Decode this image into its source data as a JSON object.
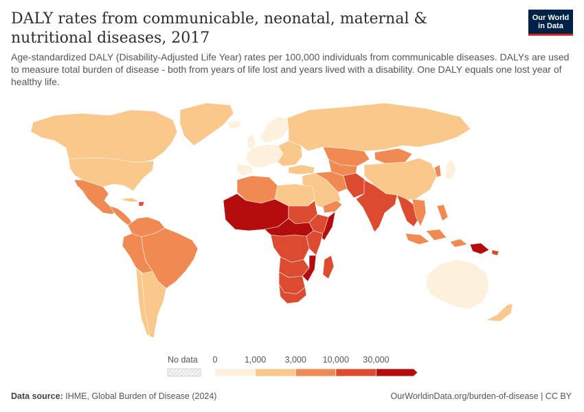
{
  "header": {
    "title": "DALY rates from communicable, neonatal, maternal & nutritional diseases, 2017",
    "subtitle": "Age-standardized DALY (Disability-Adjusted Life Year) rates per 100,000 individuals from communicable diseases. DALYs are used to measure total burden of disease - both from years of life lost and years lived with a disability. One DALY equals one lost year of healthy life."
  },
  "logo": {
    "line1": "Our World",
    "line2": "in Data",
    "bg": "#002147",
    "accent": "#ce261e"
  },
  "colors": {
    "c0": "#fdf0dc",
    "c1": "#f9c88a",
    "c2": "#f08a52",
    "c3": "#dc4a30",
    "c4": "#b50d0d",
    "ocean": "#ffffff",
    "border": "#ffffff"
  },
  "legend": {
    "no_data_label": "No data",
    "ticks": [
      "0",
      "1,000",
      "3,000",
      "10,000",
      "30,000"
    ],
    "bins": [
      {
        "from": 0,
        "to": 1000,
        "color": "#fdf0dc"
      },
      {
        "from": 1000,
        "to": 3000,
        "color": "#f9c88a"
      },
      {
        "from": 3000,
        "to": 10000,
        "color": "#f08a52"
      },
      {
        "from": 10000,
        "to": 30000,
        "color": "#dc4a30"
      },
      {
        "from": 30000,
        "to": null,
        "color": "#b50d0d"
      }
    ]
  },
  "footer": {
    "source_label": "Data source:",
    "source_text": "IHME, Global Burden of Disease (2024)",
    "url": "OurWorldinData.org/burden-of-disease | CC BY"
  }
}
